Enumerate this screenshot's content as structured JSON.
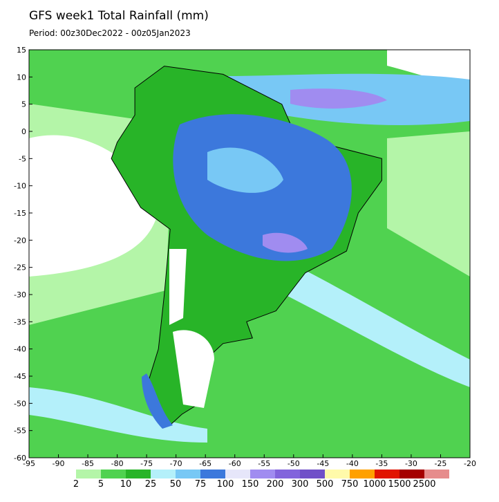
{
  "title": "GFS week1 Total Rainfall (mm)",
  "subtitle": "Period: 00z30Dec2022 - 00z05Jan2023",
  "map": {
    "xlim": [
      -95,
      -20
    ],
    "ylim": [
      -60,
      15
    ],
    "xticks": [
      -95,
      -90,
      -85,
      -80,
      -75,
      -70,
      -65,
      -60,
      -55,
      -50,
      -45,
      -40,
      -35,
      -30,
      -25,
      -20
    ],
    "yticks": [
      15,
      10,
      5,
      0,
      -5,
      -10,
      -15,
      -20,
      -25,
      -30,
      -35,
      -40,
      -45,
      -50,
      -55,
      -60
    ]
  },
  "colorbar": {
    "labels": [
      2,
      5,
      10,
      25,
      50,
      75,
      100,
      150,
      200,
      300,
      500,
      750,
      1000,
      1500,
      2500
    ],
    "colors": [
      "#b4f5a8",
      "#50d250",
      "#28b428",
      "#b4f0fa",
      "#78c8f5",
      "#3c78dc",
      "#e6e6fa",
      "#a08cf0",
      "#8264dc",
      "#7050c8",
      "#fffaaa",
      "#ffa000",
      "#e11400",
      "#a50000",
      "#e68c8c"
    ]
  }
}
